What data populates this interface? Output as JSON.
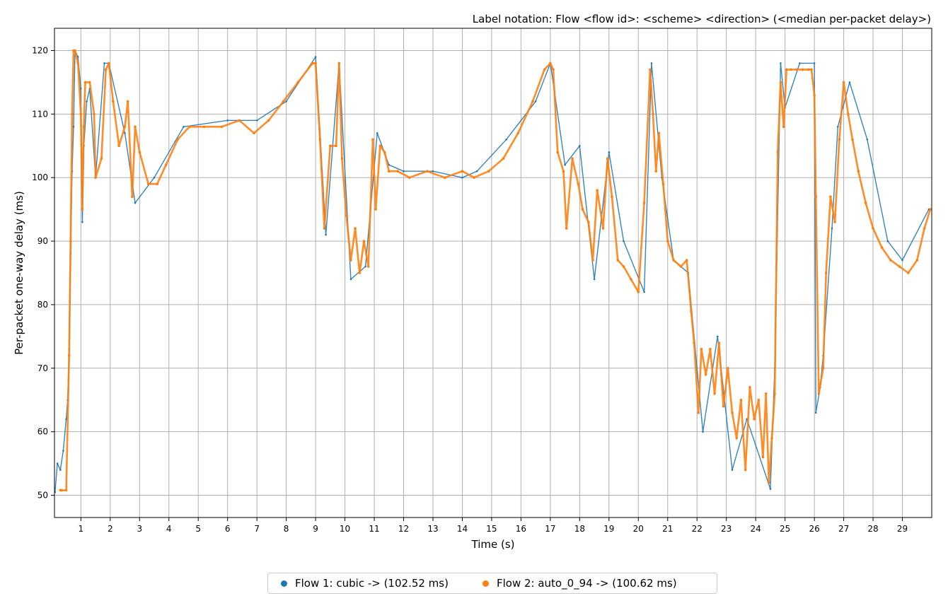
{
  "chart_data": {
    "type": "scatter",
    "title": "Label notation: Flow <flow id>: <scheme> <direction> (<median per-packet delay>)",
    "xlabel": "Time (s)",
    "ylabel": "Per-packet one-way delay (ms)",
    "xlim": [
      0.1,
      30.0
    ],
    "ylim": [
      46.5,
      123.5
    ],
    "x_ticks": [
      "1",
      "2",
      "3",
      "4",
      "5",
      "6",
      "7",
      "8",
      "9",
      "10",
      "11",
      "12",
      "13",
      "14",
      "15",
      "16",
      "17",
      "18",
      "19",
      "20",
      "21",
      "22",
      "23",
      "24",
      "25",
      "26",
      "27",
      "28",
      "29"
    ],
    "y_ticks": [
      "50",
      "60",
      "70",
      "80",
      "90",
      "100",
      "110",
      "120"
    ],
    "grid": true,
    "legend_position": "below",
    "series": [
      {
        "name": "Flow 1: cubic -> (102.52 ms)",
        "color": "#1f77b4",
        "x": [
          0.12,
          0.2,
          0.3,
          0.4,
          0.5,
          0.55,
          0.6,
          0.65,
          0.7,
          0.75,
          0.8,
          0.9,
          1.0,
          1.05,
          1.1,
          1.2,
          1.3,
          1.5,
          1.8,
          1.95,
          2.5,
          2.85,
          3.5,
          4.5,
          6.0,
          7.0,
          8.0,
          9.0,
          9.35,
          9.8,
          10.2,
          10.7,
          11.1,
          11.5,
          12.0,
          13.0,
          14.0,
          14.5,
          15.5,
          16.5,
          17.0,
          17.5,
          18.0,
          18.5,
          19.0,
          19.5,
          20.2,
          20.45,
          20.8,
          21.2,
          21.7,
          22.2,
          22.7,
          23.2,
          23.7,
          24.5,
          24.65,
          24.85,
          25.0,
          25.5,
          26.0,
          26.05,
          26.2,
          26.3,
          26.6,
          26.8,
          27.2,
          27.8,
          28.5,
          29.0,
          29.9
        ],
        "y": [
          50.5,
          55,
          54,
          57,
          62,
          65,
          73,
          88,
          101,
          108,
          120,
          119,
          114,
          93,
          105,
          112,
          114,
          100,
          118,
          118,
          107,
          96,
          100,
          108,
          109,
          109,
          112,
          119,
          91,
          118,
          84,
          86,
          107,
          102,
          101,
          101,
          100,
          101,
          106,
          112,
          118,
          102,
          105,
          84,
          104,
          90,
          82,
          118,
          100,
          87,
          85,
          60,
          75,
          54,
          62,
          51,
          70,
          118,
          111,
          118,
          118,
          63,
          67,
          72,
          92,
          108,
          115,
          106,
          90,
          87,
          95
        ]
      },
      {
        "name": "Flow 2: auto_0_94 -> (100.62 ms)",
        "color": "#ff7f0e",
        "x": [
          0.3,
          0.35,
          0.5,
          0.6,
          0.65,
          0.7,
          0.75,
          0.8,
          0.9,
          1.0,
          1.05,
          1.1,
          1.15,
          1.3,
          1.45,
          1.5,
          1.7,
          1.85,
          1.95,
          2.1,
          2.3,
          2.5,
          2.6,
          2.75,
          2.85,
          3.0,
          3.3,
          3.6,
          3.9,
          4.3,
          4.7,
          5.2,
          5.8,
          6.4,
          6.9,
          7.4,
          7.9,
          8.4,
          8.9,
          9.0,
          9.15,
          9.3,
          9.5,
          9.7,
          9.8,
          9.9,
          10.05,
          10.2,
          10.35,
          10.5,
          10.65,
          10.8,
          10.95,
          11.05,
          11.2,
          11.35,
          11.5,
          11.8,
          12.2,
          12.8,
          13.4,
          14.0,
          14.4,
          14.9,
          15.4,
          15.9,
          16.4,
          16.8,
          17.0,
          17.1,
          17.25,
          17.45,
          17.55,
          17.75,
          17.95,
          18.1,
          18.3,
          18.45,
          18.6,
          18.8,
          18.95,
          19.1,
          19.3,
          19.5,
          19.75,
          20.0,
          20.2,
          20.4,
          20.5,
          20.6,
          20.7,
          20.85,
          21.0,
          21.2,
          21.45,
          21.65,
          21.8,
          21.9,
          22.05,
          22.15,
          22.3,
          22.45,
          22.6,
          22.75,
          22.9,
          23.05,
          23.2,
          23.35,
          23.5,
          23.65,
          23.8,
          23.95,
          24.1,
          24.25,
          24.35,
          24.45,
          24.55,
          24.65,
          24.75,
          24.85,
          24.95,
          25.05,
          25.2,
          25.4,
          25.6,
          25.8,
          25.9,
          26.0,
          26.05,
          26.15,
          26.3,
          26.4,
          26.55,
          26.7,
          26.85,
          27.0,
          27.15,
          27.3,
          27.5,
          27.75,
          28.0,
          28.3,
          28.6,
          28.9,
          29.2,
          29.5,
          29.75,
          29.95
        ],
        "y": [
          50.8,
          50.8,
          50.8,
          72,
          90,
          110,
          120,
          120,
          118,
          110,
          95,
          108,
          115,
          115,
          110,
          100,
          103,
          117,
          118,
          112,
          105,
          108,
          112,
          97,
          108,
          104,
          99,
          99,
          102,
          106,
          108,
          108,
          108,
          109,
          107,
          109,
          112,
          115,
          118,
          118,
          106,
          92,
          105,
          105,
          118,
          103,
          94,
          87,
          92,
          85,
          90,
          86,
          106,
          95,
          105,
          104,
          101,
          101,
          100,
          101,
          100,
          101,
          100,
          101,
          103,
          107,
          112,
          117,
          118,
          117,
          104,
          101,
          92,
          103,
          99,
          95,
          93,
          87,
          98,
          92,
          103,
          97,
          87,
          86,
          84,
          82,
          96,
          117,
          110,
          101,
          107,
          99,
          90,
          87,
          86,
          87,
          79,
          74,
          63,
          73,
          69,
          73,
          66,
          74,
          64,
          70,
          63,
          59,
          65,
          54,
          67,
          62,
          65,
          56,
          66,
          52,
          59,
          66,
          104,
          115,
          108,
          117,
          117,
          117,
          117,
          117,
          117,
          113,
          97,
          66,
          70,
          85,
          97,
          93,
          106,
          115,
          110,
          106,
          101,
          96,
          92,
          89,
          87,
          86,
          85,
          87,
          92,
          95
        ]
      }
    ]
  }
}
